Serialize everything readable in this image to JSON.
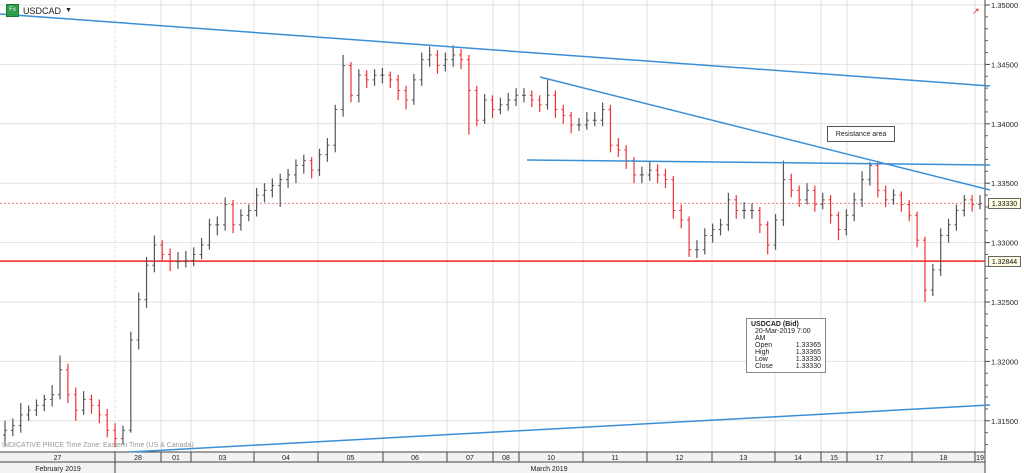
{
  "header": {
    "symbol": "USDCAD",
    "dropdown_icon": "caret-down-icon",
    "badge_icon": "fx-icon",
    "badge_text": "Fx"
  },
  "footer_note": "INDICATIVE PRICE   Time Zone: Eastern Time (US & Canada)",
  "tooltip": {
    "title": "USDCAD (Bid)",
    "datetime": "20-Mar-2019 7:00 AM",
    "rows": [
      {
        "label": "Open",
        "value": "1.33365"
      },
      {
        "label": "High",
        "value": "1.33365"
      },
      {
        "label": "Low",
        "value": "1.33330"
      },
      {
        "label": "Close",
        "value": "1.33330"
      }
    ]
  },
  "annotation": "Resistance area",
  "price_tags": {
    "last": "1.33330",
    "level": "1.32844"
  },
  "colors": {
    "up": "#555555",
    "down": "#ee3333",
    "trendline": "#3b8fd6",
    "level": "#ee2222"
  },
  "chart_data": {
    "type": "ohlc",
    "title": "USDCAD",
    "ylim": [
      1.3125,
      1.35
    ],
    "yticks": [
      "1.35000",
      "1.34500",
      "1.34000",
      "1.33500",
      "1.33000",
      "1.32500",
      "1.32000",
      "1.31500"
    ],
    "xticks": [
      "27",
      "28",
      "01",
      "03",
      "04",
      "05",
      "06",
      "07",
      "08",
      "10",
      "11",
      "12",
      "13",
      "14",
      "15",
      "17",
      "18",
      "19"
    ],
    "months": [
      "February 2019",
      "March 2019"
    ],
    "horizontal_levels": [
      1.32844
    ],
    "last_price": 1.3333,
    "grid": true,
    "bars": [
      [
        1.3138,
        1.315,
        1.3128,
        1.3142
      ],
      [
        1.3142,
        1.3152,
        1.3137,
        1.3146
      ],
      [
        1.3146,
        1.3165,
        1.314,
        1.3155
      ],
      [
        1.3155,
        1.3163,
        1.315,
        1.3159
      ],
      [
        1.3159,
        1.3168,
        1.3154,
        1.3163
      ],
      [
        1.3163,
        1.3172,
        1.3158,
        1.3168
      ],
      [
        1.3168,
        1.318,
        1.3162,
        1.3172
      ],
      [
        1.3172,
        1.3205,
        1.3168,
        1.3193
      ],
      [
        1.3193,
        1.3198,
        1.3165,
        1.3172
      ],
      [
        1.3172,
        1.3178,
        1.315,
        1.3159
      ],
      [
        1.3159,
        1.3175,
        1.3155,
        1.3168
      ],
      [
        1.3168,
        1.3172,
        1.3156,
        1.3163
      ],
      [
        1.3163,
        1.3168,
        1.3148,
        1.3155
      ],
      [
        1.3155,
        1.316,
        1.3136,
        1.3142
      ],
      [
        1.3142,
        1.3148,
        1.3128,
        1.3135
      ],
      [
        1.3135,
        1.3146,
        1.313,
        1.3142
      ],
      [
        1.3142,
        1.3225,
        1.314,
        1.3218
      ],
      [
        1.3218,
        1.3258,
        1.321,
        1.3252
      ],
      [
        1.3252,
        1.3288,
        1.3245,
        1.3281
      ],
      [
        1.3281,
        1.3306,
        1.3275,
        1.3298
      ],
      [
        1.3298,
        1.3302,
        1.3284,
        1.329
      ],
      [
        1.329,
        1.3295,
        1.3276,
        1.3284
      ],
      [
        1.3284,
        1.3292,
        1.3278,
        1.3284
      ],
      [
        1.3284,
        1.3293,
        1.3279,
        1.3285
      ],
      [
        1.3285,
        1.3296,
        1.328,
        1.329
      ],
      [
        1.329,
        1.3304,
        1.3286,
        1.3298
      ],
      [
        1.3298,
        1.332,
        1.3294,
        1.3315
      ],
      [
        1.3315,
        1.3322,
        1.3306,
        1.3315
      ],
      [
        1.3315,
        1.3338,
        1.331,
        1.3332
      ],
      [
        1.3332,
        1.3336,
        1.3308,
        1.3315
      ],
      [
        1.3315,
        1.3328,
        1.331,
        1.3323
      ],
      [
        1.3323,
        1.3332,
        1.3318,
        1.3327
      ],
      [
        1.3327,
        1.3346,
        1.3322,
        1.334
      ],
      [
        1.334,
        1.335,
        1.3334,
        1.3344
      ],
      [
        1.3344,
        1.3354,
        1.3338,
        1.3348
      ],
      [
        1.3348,
        1.3358,
        1.333,
        1.3353
      ],
      [
        1.3353,
        1.3362,
        1.3346,
        1.3357
      ],
      [
        1.3357,
        1.337,
        1.335,
        1.3365
      ],
      [
        1.3365,
        1.3374,
        1.3358,
        1.3369
      ],
      [
        1.3369,
        1.3372,
        1.3354,
        1.3361
      ],
      [
        1.3361,
        1.3379,
        1.3356,
        1.3374
      ],
      [
        1.3374,
        1.3388,
        1.3368,
        1.3382
      ],
      [
        1.3382,
        1.3416,
        1.3376,
        1.3412
      ],
      [
        1.3412,
        1.3458,
        1.3406,
        1.3449
      ],
      [
        1.3449,
        1.3452,
        1.3418,
        1.3424
      ],
      [
        1.3424,
        1.3446,
        1.3418,
        1.3441
      ],
      [
        1.3441,
        1.3445,
        1.343,
        1.3437
      ],
      [
        1.3437,
        1.3446,
        1.3432,
        1.3441
      ],
      [
        1.3441,
        1.3447,
        1.3434,
        1.3441
      ],
      [
        1.3441,
        1.3444,
        1.343,
        1.3437
      ],
      [
        1.3437,
        1.3441,
        1.342,
        1.3428
      ],
      [
        1.3428,
        1.3432,
        1.3412,
        1.342
      ],
      [
        1.342,
        1.3442,
        1.3416,
        1.3437
      ],
      [
        1.3437,
        1.346,
        1.3432,
        1.3454
      ],
      [
        1.3454,
        1.3465,
        1.3448,
        1.3458
      ],
      [
        1.3458,
        1.3462,
        1.3442,
        1.3449
      ],
      [
        1.3449,
        1.346,
        1.3444,
        1.3454
      ],
      [
        1.3454,
        1.3466,
        1.3448,
        1.3458
      ],
      [
        1.3458,
        1.3463,
        1.3446,
        1.3454
      ],
      [
        1.3454,
        1.3458,
        1.3391,
        1.3428
      ],
      [
        1.3428,
        1.3432,
        1.3398,
        1.3403
      ],
      [
        1.3403,
        1.3425,
        1.34,
        1.342
      ],
      [
        1.342,
        1.3424,
        1.3405,
        1.3412
      ],
      [
        1.3412,
        1.3422,
        1.3408,
        1.3416
      ],
      [
        1.3416,
        1.3426,
        1.3411,
        1.342
      ],
      [
        1.342,
        1.343,
        1.3415,
        1.3424
      ],
      [
        1.3424,
        1.343,
        1.3418,
        1.3424
      ],
      [
        1.3424,
        1.3428,
        1.3414,
        1.342
      ],
      [
        1.342,
        1.3424,
        1.341,
        1.3416
      ],
      [
        1.3416,
        1.3437,
        1.3412,
        1.3424
      ],
      [
        1.3424,
        1.3428,
        1.3405,
        1.3412
      ],
      [
        1.3412,
        1.3416,
        1.34,
        1.3407
      ],
      [
        1.3407,
        1.341,
        1.3392,
        1.3399
      ],
      [
        1.3399,
        1.3405,
        1.3394,
        1.3399
      ],
      [
        1.3399,
        1.341,
        1.3395,
        1.3403
      ],
      [
        1.3403,
        1.341,
        1.3398,
        1.3403
      ],
      [
        1.3403,
        1.3418,
        1.3398,
        1.3412
      ],
      [
        1.3412,
        1.3416,
        1.3376,
        1.3382
      ],
      [
        1.3382,
        1.3388,
        1.3372,
        1.3378
      ],
      [
        1.3378,
        1.3382,
        1.3362,
        1.3369
      ],
      [
        1.3369,
        1.3372,
        1.335,
        1.3357
      ],
      [
        1.3357,
        1.3364,
        1.335,
        1.3357
      ],
      [
        1.3357,
        1.3368,
        1.3352,
        1.3361
      ],
      [
        1.3361,
        1.3366,
        1.335,
        1.3357
      ],
      [
        1.3357,
        1.3362,
        1.3346,
        1.3353
      ],
      [
        1.3353,
        1.3356,
        1.332,
        1.3327
      ],
      [
        1.3327,
        1.3332,
        1.3312,
        1.3319
      ],
      [
        1.3319,
        1.3322,
        1.3288,
        1.3294
      ],
      [
        1.3294,
        1.3302,
        1.3287,
        1.3294
      ],
      [
        1.3294,
        1.3312,
        1.329,
        1.3306
      ],
      [
        1.3306,
        1.3316,
        1.33,
        1.3311
      ],
      [
        1.3311,
        1.332,
        1.3306,
        1.3315
      ],
      [
        1.3315,
        1.3342,
        1.331,
        1.3336
      ],
      [
        1.3336,
        1.334,
        1.332,
        1.3327
      ],
      [
        1.3327,
        1.3334,
        1.332,
        1.3327
      ],
      [
        1.3327,
        1.3333,
        1.332,
        1.3327
      ],
      [
        1.3327,
        1.333,
        1.3308,
        1.3315
      ],
      [
        1.3315,
        1.3318,
        1.329,
        1.3298
      ],
      [
        1.3298,
        1.3324,
        1.3294,
        1.3319
      ],
      [
        1.3319,
        1.3369,
        1.3314,
        1.3353
      ],
      [
        1.3353,
        1.3358,
        1.3338,
        1.3344
      ],
      [
        1.3344,
        1.3348,
        1.333,
        1.3336
      ],
      [
        1.3336,
        1.335,
        1.3332,
        1.3344
      ],
      [
        1.3344,
        1.3348,
        1.3326,
        1.3332
      ],
      [
        1.3332,
        1.3342,
        1.3328,
        1.3336
      ],
      [
        1.3336,
        1.334,
        1.3316,
        1.3323
      ],
      [
        1.3323,
        1.3326,
        1.3302,
        1.3311
      ],
      [
        1.3311,
        1.3328,
        1.3306,
        1.3323
      ],
      [
        1.3323,
        1.3342,
        1.3318,
        1.3336
      ],
      [
        1.3336,
        1.336,
        1.333,
        1.3353
      ],
      [
        1.3353,
        1.3368,
        1.3348,
        1.3365
      ],
      [
        1.3365,
        1.3368,
        1.3338,
        1.3344
      ],
      [
        1.3344,
        1.3348,
        1.333,
        1.3336
      ],
      [
        1.3336,
        1.3345,
        1.3332,
        1.334
      ],
      [
        1.334,
        1.3343,
        1.3326,
        1.3332
      ],
      [
        1.3332,
        1.3336,
        1.3318,
        1.3323
      ],
      [
        1.3323,
        1.3326,
        1.3296,
        1.3302
      ],
      [
        1.3302,
        1.3305,
        1.325,
        1.326
      ],
      [
        1.326,
        1.3282,
        1.3255,
        1.3277
      ],
      [
        1.3277,
        1.3312,
        1.3272,
        1.3306
      ],
      [
        1.3306,
        1.332,
        1.33,
        1.3315
      ],
      [
        1.3315,
        1.3332,
        1.331,
        1.3327
      ],
      [
        1.3327,
        1.334,
        1.3322,
        1.3336
      ],
      [
        1.3336,
        1.334,
        1.3326,
        1.3332
      ],
      [
        1.3332,
        1.334,
        1.3328,
        1.3333
      ]
    ]
  }
}
